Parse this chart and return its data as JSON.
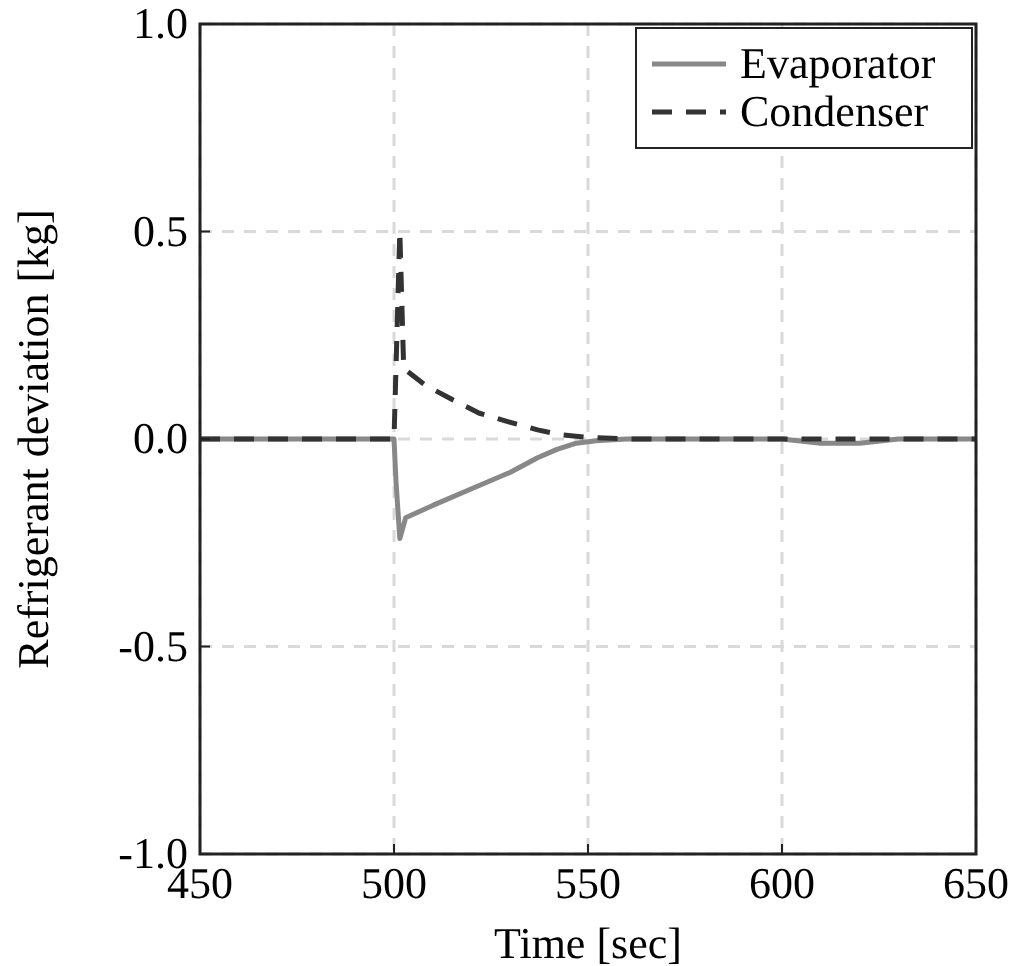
{
  "chart_data": {
    "type": "line",
    "xlabel": "Time [sec]",
    "ylabel": "Refrigerant deviation [kg]",
    "xlim": [
      450,
      650
    ],
    "ylim": [
      -1,
      1
    ],
    "xticks": [
      450,
      500,
      550,
      600,
      650
    ],
    "yticks": [
      {
        "value": -1,
        "label": "-1.0"
      },
      {
        "value": -0.5,
        "label": "-0.5"
      },
      {
        "value": 0,
        "label": "0.0"
      },
      {
        "value": 0.5,
        "label": "0.5"
      },
      {
        "value": 1,
        "label": "1.0"
      }
    ],
    "grid": true,
    "legend": "top right",
    "series": [
      {
        "name": "Evaporator",
        "color": "#888888",
        "line_style": "solid",
        "x": [
          450,
          500,
          500.5,
          501.5,
          503,
          510,
          520,
          530,
          537,
          542,
          547,
          552,
          560,
          600,
          610,
          620,
          630,
          650
        ],
        "values": [
          0,
          0,
          -0.1,
          -0.24,
          -0.19,
          -0.16,
          -0.12,
          -0.08,
          -0.045,
          -0.025,
          -0.01,
          -0.004,
          0,
          0,
          -0.01,
          -0.01,
          0,
          0
        ]
      },
      {
        "name": "Condenser",
        "color": "#333333",
        "line_style": "dashed",
        "x": [
          450,
          500,
          501.5,
          502.5,
          508,
          515,
          522,
          530,
          537,
          543,
          550,
          560,
          650
        ],
        "values": [
          0,
          0,
          0.5,
          0.17,
          0.13,
          0.095,
          0.062,
          0.04,
          0.022,
          0.01,
          0.004,
          0,
          0
        ]
      }
    ]
  }
}
